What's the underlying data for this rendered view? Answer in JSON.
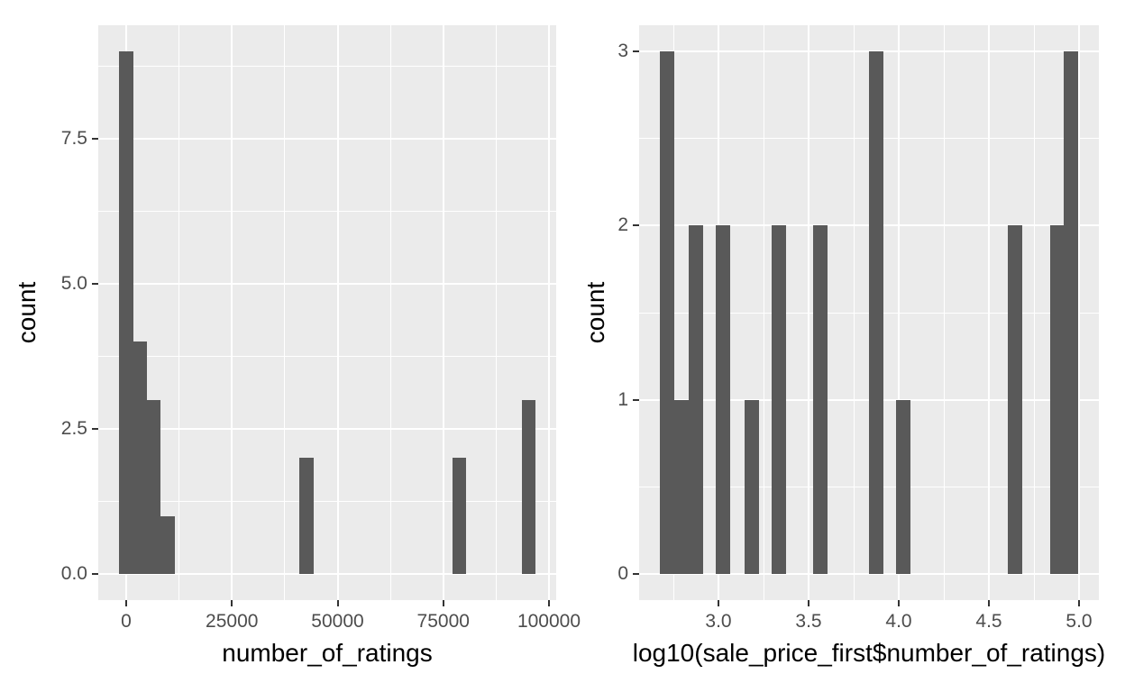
{
  "figure": {
    "background": "#FFFFFF",
    "panel_background": "#EBEBEB",
    "grid_color": "#FFFFFF",
    "bar_color": "#595959",
    "tick_mark_color": "#333333",
    "tick_label_color": "#4D4D4D",
    "axis_title_color": "#000000"
  },
  "chart_data": [
    {
      "type": "bar",
      "subtype": "histogram",
      "title": "",
      "xlabel": "number_of_ratings",
      "ylabel": "count",
      "bin_centers": [
        0,
        3283,
        6566,
        9849,
        42679,
        78792,
        95207
      ],
      "counts": [
        9,
        4,
        3,
        1,
        2,
        2,
        3
      ],
      "binwidth": 3283,
      "x_ticks": [
        0,
        25000,
        50000,
        75000,
        100000
      ],
      "x_tick_labels": [
        "0",
        "25000",
        "50000",
        "75000",
        "100000"
      ],
      "y_ticks": [
        0,
        2.5,
        5,
        7.5
      ],
      "y_tick_labels": [
        "0.0",
        "2.5",
        "5.0",
        "7.5"
      ],
      "xlim": [
        -6610,
        101705
      ],
      "ylim": [
        -0.45,
        9.45
      ],
      "grid": "major-minor",
      "legend": "none"
    },
    {
      "type": "bar",
      "subtype": "histogram",
      "title": "",
      "xlabel": "log10(sale_price_first$number_of_ratings)",
      "ylabel": "count",
      "bin_centers": [
        2.715,
        2.7925,
        2.8725,
        3.0225,
        3.1825,
        3.335,
        3.5625,
        3.8725,
        4.0225,
        4.6425,
        4.8775,
        4.9525
      ],
      "counts": [
        3,
        1,
        2,
        2,
        1,
        2,
        2,
        3,
        1,
        2,
        2,
        3
      ],
      "binwidth": 0.08,
      "x_ticks": [
        3.0,
        3.5,
        4.0,
        4.5,
        5.0
      ],
      "x_tick_labels": [
        "3.0",
        "3.5",
        "4.0",
        "4.5",
        "5.0"
      ],
      "y_ticks": [
        0,
        1,
        2,
        3
      ],
      "y_tick_labels": [
        "0",
        "1",
        "2",
        "3"
      ],
      "xlim": [
        2.56,
        5.11
      ],
      "ylim": [
        -0.15,
        3.15
      ],
      "grid": "major-minor",
      "legend": "none"
    }
  ]
}
